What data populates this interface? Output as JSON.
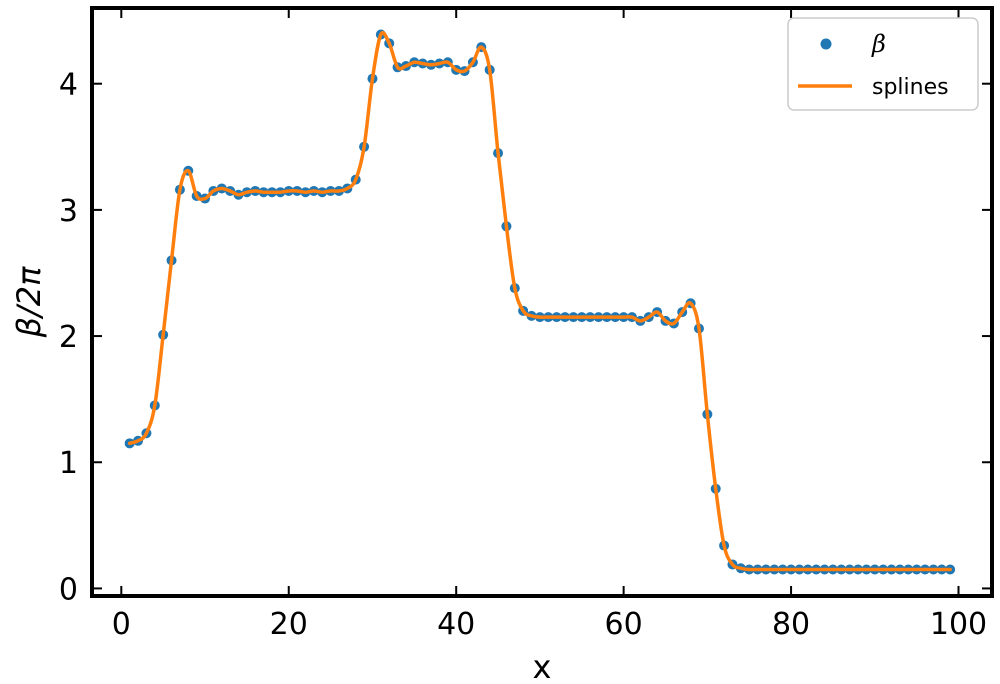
{
  "chart_data": {
    "type": "line",
    "title": "",
    "xlabel": "x",
    "ylabel": "β/2π",
    "xlim": [
      -3.5,
      104
    ],
    "ylim": [
      -0.06,
      4.6
    ],
    "xticks": [
      0,
      20,
      40,
      60,
      80,
      100
    ],
    "yticks": [
      0,
      1,
      2,
      3,
      4
    ],
    "grid": false,
    "legend_position": "top-right",
    "colors": {
      "points": "#1f77b4",
      "splines": "#ff7f0e"
    },
    "series": [
      {
        "name": "β",
        "kind": "scatter",
        "x": [
          1,
          2,
          3,
          4,
          5,
          6,
          7,
          8,
          9,
          10,
          11,
          12,
          13,
          14,
          15,
          16,
          17,
          18,
          19,
          20,
          21,
          22,
          23,
          24,
          25,
          26,
          27,
          28,
          29,
          30,
          31,
          32,
          33,
          34,
          35,
          36,
          37,
          38,
          39,
          40,
          41,
          42,
          43,
          44,
          45,
          46,
          47,
          48,
          49,
          50,
          51,
          52,
          53,
          54,
          55,
          56,
          57,
          58,
          59,
          60,
          61,
          62,
          63,
          64,
          65,
          66,
          67,
          68,
          69,
          70,
          71,
          72,
          73,
          74,
          75,
          76,
          77,
          78,
          79,
          80,
          81,
          82,
          83,
          84,
          85,
          86,
          87,
          88,
          89,
          90,
          91,
          92,
          93,
          94,
          95,
          96,
          97,
          98,
          99
        ],
        "y": [
          1.15,
          1.17,
          1.23,
          1.45,
          2.01,
          2.6,
          3.16,
          3.31,
          3.11,
          3.09,
          3.15,
          3.17,
          3.15,
          3.12,
          3.14,
          3.15,
          3.14,
          3.14,
          3.14,
          3.15,
          3.15,
          3.14,
          3.15,
          3.14,
          3.15,
          3.15,
          3.17,
          3.24,
          3.5,
          4.04,
          4.39,
          4.32,
          4.13,
          4.14,
          4.17,
          4.16,
          4.15,
          4.16,
          4.17,
          4.11,
          4.1,
          4.17,
          4.29,
          4.11,
          3.45,
          2.87,
          2.38,
          2.2,
          2.16,
          2.15,
          2.15,
          2.15,
          2.15,
          2.15,
          2.15,
          2.15,
          2.15,
          2.15,
          2.15,
          2.15,
          2.15,
          2.12,
          2.15,
          2.19,
          2.12,
          2.1,
          2.19,
          2.26,
          2.06,
          1.38,
          0.79,
          0.34,
          0.19,
          0.16,
          0.15,
          0.15,
          0.15,
          0.15,
          0.15,
          0.15,
          0.15,
          0.15,
          0.15,
          0.15,
          0.15,
          0.15,
          0.15,
          0.15,
          0.15,
          0.15,
          0.15,
          0.15,
          0.15,
          0.15,
          0.15,
          0.15,
          0.15,
          0.15,
          0.15
        ]
      },
      {
        "name": "splines",
        "kind": "line",
        "x": [
          1,
          2,
          3,
          4,
          5,
          6,
          7,
          8,
          9,
          10,
          11,
          12,
          13,
          14,
          15,
          16,
          17,
          18,
          19,
          20,
          21,
          22,
          23,
          24,
          25,
          26,
          27,
          28,
          29,
          30,
          31,
          32,
          33,
          34,
          35,
          36,
          37,
          38,
          39,
          40,
          41,
          42,
          43,
          44,
          45,
          46,
          47,
          48,
          49,
          50,
          51,
          52,
          53,
          54,
          55,
          56,
          57,
          58,
          59,
          60,
          61,
          62,
          63,
          64,
          65,
          66,
          67,
          68,
          69,
          70,
          71,
          72,
          73,
          74,
          75,
          76,
          77,
          78,
          79,
          80,
          81,
          82,
          83,
          84,
          85,
          86,
          87,
          88,
          89,
          90,
          91,
          92,
          93,
          94,
          95,
          96,
          97,
          98,
          99
        ],
        "y": [
          1.15,
          1.17,
          1.23,
          1.45,
          2.01,
          2.6,
          3.16,
          3.31,
          3.11,
          3.09,
          3.15,
          3.17,
          3.15,
          3.12,
          3.14,
          3.15,
          3.14,
          3.14,
          3.14,
          3.15,
          3.15,
          3.14,
          3.15,
          3.14,
          3.15,
          3.15,
          3.17,
          3.24,
          3.5,
          4.04,
          4.39,
          4.32,
          4.13,
          4.14,
          4.17,
          4.16,
          4.15,
          4.16,
          4.17,
          4.11,
          4.1,
          4.17,
          4.29,
          4.11,
          3.45,
          2.87,
          2.38,
          2.2,
          2.16,
          2.15,
          2.15,
          2.15,
          2.15,
          2.15,
          2.15,
          2.15,
          2.15,
          2.15,
          2.15,
          2.15,
          2.15,
          2.12,
          2.15,
          2.19,
          2.12,
          2.1,
          2.19,
          2.26,
          2.06,
          1.38,
          0.79,
          0.34,
          0.19,
          0.16,
          0.15,
          0.15,
          0.15,
          0.15,
          0.15,
          0.15,
          0.15,
          0.15,
          0.15,
          0.15,
          0.15,
          0.15,
          0.15,
          0.15,
          0.15,
          0.15,
          0.15,
          0.15,
          0.15,
          0.15,
          0.15,
          0.15,
          0.15,
          0.15,
          0.15
        ]
      }
    ],
    "legend": [
      {
        "label": "β",
        "marker": "point"
      },
      {
        "label": "splines",
        "marker": "line"
      }
    ]
  }
}
